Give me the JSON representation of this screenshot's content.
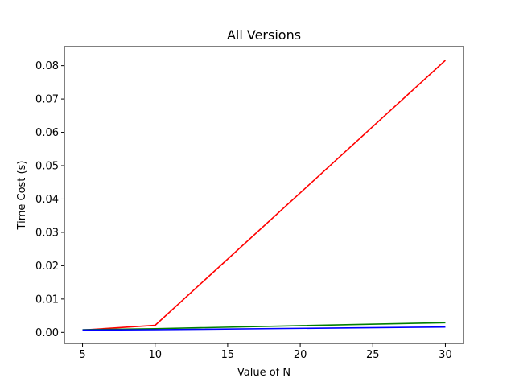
{
  "chart_data": {
    "type": "line",
    "title": "All Versions",
    "xlabel": "Value of N",
    "ylabel": "Time Cost (s)",
    "x": [
      5,
      10,
      30
    ],
    "xlim": [
      3.75,
      31.25
    ],
    "ylim": [
      -0.0033,
      0.0857
    ],
    "xticks": [
      5,
      10,
      15,
      20,
      25,
      30
    ],
    "yticks": [
      0.0,
      0.01,
      0.02,
      0.03,
      0.04,
      0.05,
      0.06,
      0.07,
      0.08
    ],
    "yticks_labels": [
      "0.00",
      "0.01",
      "0.02",
      "0.03",
      "0.04",
      "0.05",
      "0.06",
      "0.07",
      "0.08"
    ],
    "xticks_labels": [
      "5",
      "10",
      "15",
      "20",
      "25",
      "30"
    ],
    "grid": false,
    "series": [
      {
        "color": "#ff0000",
        "values": [
          0.0007,
          0.0021,
          0.0816
        ]
      },
      {
        "color": "#008000",
        "values": [
          0.0008,
          0.0011,
          0.0029
        ]
      },
      {
        "color": "#0000ff",
        "values": [
          0.0007,
          0.0008,
          0.0016
        ]
      }
    ]
  }
}
